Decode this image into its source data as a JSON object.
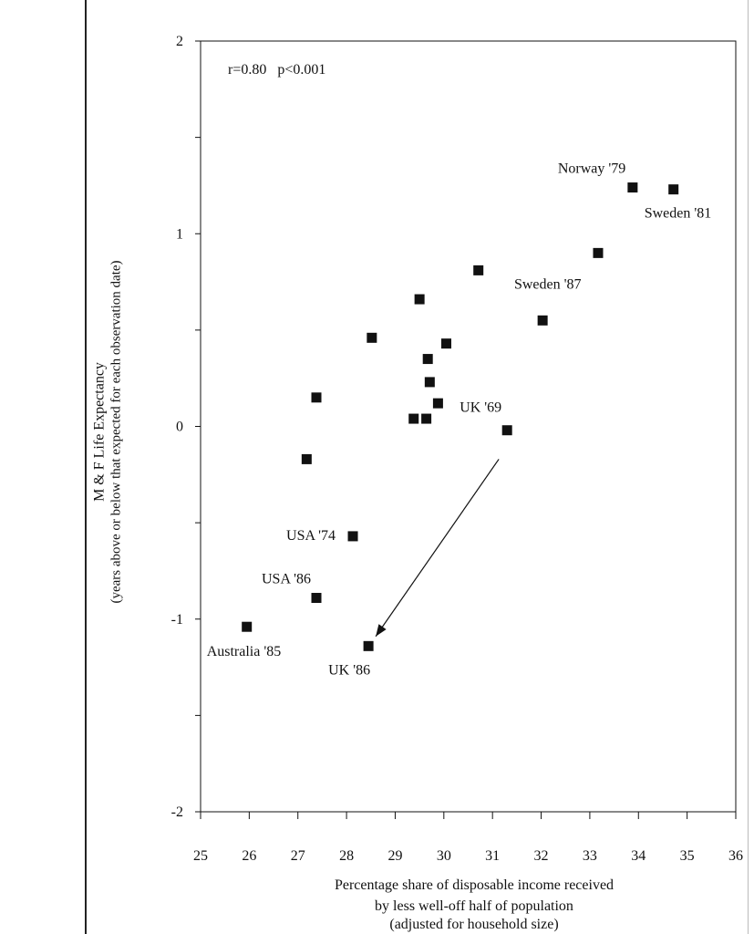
{
  "chart_data": {
    "type": "scatter",
    "annotation": "r=0.80   p<0.001",
    "ylabel_line1": "M & F Life Expectancy",
    "ylabel_line2": "(years above or below that expected for each observation date)",
    "xlabel_line1": "Percentage share of disposable income received",
    "xlabel_line2": "by less well-off half of population",
    "xlabel_line3": "(adjusted for household size)",
    "xlim": [
      25,
      36
    ],
    "ylim": [
      -2,
      2
    ],
    "x_ticks": [
      "25",
      "26",
      "27",
      "28",
      "29",
      "30",
      "31",
      "32",
      "33",
      "34",
      "35",
      "36"
    ],
    "y_ticks": [
      "2",
      "1",
      "0",
      "-1",
      "-2"
    ],
    "grid": false,
    "points": [
      {
        "x": 25.95,
        "y": -1.04,
        "label": "Australia '85"
      },
      {
        "x": 27.18,
        "y": -0.17,
        "label": ""
      },
      {
        "x": 27.38,
        "y": 0.15,
        "label": ""
      },
      {
        "x": 27.38,
        "y": -0.89,
        "label": "USA '86"
      },
      {
        "x": 28.13,
        "y": -0.57,
        "label": "USA '74"
      },
      {
        "x": 28.45,
        "y": -1.14,
        "label": "UK '86"
      },
      {
        "x": 28.52,
        "y": 0.46,
        "label": ""
      },
      {
        "x": 29.38,
        "y": 0.04,
        "label": ""
      },
      {
        "x": 29.5,
        "y": 0.66,
        "label": ""
      },
      {
        "x": 29.64,
        "y": 0.04,
        "label": ""
      },
      {
        "x": 29.67,
        "y": 0.35,
        "label": ""
      },
      {
        "x": 29.71,
        "y": 0.23,
        "label": ""
      },
      {
        "x": 29.88,
        "y": 0.12,
        "label": ""
      },
      {
        "x": 30.05,
        "y": 0.43,
        "label": ""
      },
      {
        "x": 30.71,
        "y": 0.81,
        "label": ""
      },
      {
        "x": 31.3,
        "y": -0.02,
        "label": "UK '69"
      },
      {
        "x": 32.03,
        "y": 0.55,
        "label": ""
      },
      {
        "x": 33.17,
        "y": 0.9,
        "label": "Sweden '87"
      },
      {
        "x": 33.88,
        "y": 1.24,
        "label": "Norway '79"
      },
      {
        "x": 34.72,
        "y": 1.23,
        "label": "Sweden '81"
      }
    ],
    "arrow": {
      "from": [
        31.13,
        -0.17
      ],
      "to": [
        28.6,
        -1.09
      ]
    }
  }
}
